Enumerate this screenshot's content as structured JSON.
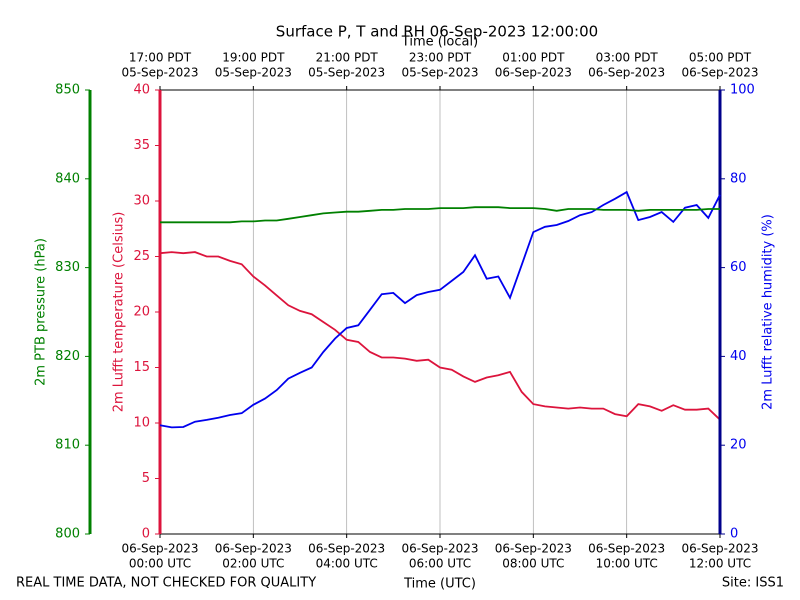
{
  "chart_data": {
    "type": "line",
    "title": "Surface P, T and RH 06-Sep-2023 12:00:00",
    "xlabel": "Time (UTC)",
    "top_xlabel": "Time (local)",
    "footnote_left": "REAL TIME DATA, NOT CHECKED FOR QUALITY",
    "footnote_right": "Site: ISS1",
    "x": [
      0,
      0.25,
      0.5,
      0.75,
      1,
      1.25,
      1.5,
      1.75,
      2,
      2.25,
      2.5,
      2.75,
      3,
      3.25,
      3.5,
      3.75,
      4,
      4.25,
      4.5,
      4.75,
      5,
      5.25,
      5.5,
      5.75,
      6,
      6.25,
      6.5,
      6.75,
      7,
      7.25,
      7.5,
      7.75,
      8,
      8.25,
      8.5,
      8.75,
      9,
      9.25,
      9.5,
      9.75,
      10,
      10.25,
      10.5,
      10.75,
      11,
      11.25,
      11.5,
      11.75,
      12
    ],
    "xlim": [
      0,
      12
    ],
    "xticks": [
      {
        "value": 0,
        "label": [
          "06-Sep-2023",
          "00:00 UTC"
        ]
      },
      {
        "value": 2,
        "label": [
          "06-Sep-2023",
          "02:00 UTC"
        ]
      },
      {
        "value": 4,
        "label": [
          "06-Sep-2023",
          "04:00 UTC"
        ]
      },
      {
        "value": 6,
        "label": [
          "06-Sep-2023",
          "06:00 UTC"
        ]
      },
      {
        "value": 8,
        "label": [
          "06-Sep-2023",
          "08:00 UTC"
        ]
      },
      {
        "value": 10,
        "label": [
          "06-Sep-2023",
          "10:00 UTC"
        ]
      },
      {
        "value": 12,
        "label": [
          "06-Sep-2023",
          "12:00 UTC"
        ]
      }
    ],
    "top_xticks": [
      {
        "value": 0,
        "label": [
          "17:00 PDT",
          "05-Sep-2023"
        ]
      },
      {
        "value": 2,
        "label": [
          "19:00 PDT",
          "05-Sep-2023"
        ]
      },
      {
        "value": 4,
        "label": [
          "21:00 PDT",
          "05-Sep-2023"
        ]
      },
      {
        "value": 6,
        "label": [
          "23:00 PDT",
          "05-Sep-2023"
        ]
      },
      {
        "value": 8,
        "label": [
          "01:00 PDT",
          "06-Sep-2023"
        ]
      },
      {
        "value": 10,
        "label": [
          "03:00 PDT",
          "06-Sep-2023"
        ]
      },
      {
        "value": 12,
        "label": [
          "05:00 PDT",
          "06-Sep-2023"
        ]
      }
    ],
    "grid": true,
    "ylim": [
      0,
      40
    ],
    "yticks": [
      0,
      5,
      10,
      15,
      20,
      25,
      30,
      35,
      40
    ],
    "y2lim": [
      0,
      100
    ],
    "y2ticks": [
      0,
      20,
      40,
      60,
      80,
      100
    ],
    "y3lim": [
      800,
      850
    ],
    "y3ticks": [
      800,
      810,
      820,
      830,
      840,
      850
    ],
    "series": [
      {
        "label": "2m Lufft temperature (Celsius)",
        "color": "#dc143c",
        "axis": "y",
        "values": [
          25.3,
          25.4,
          25.3,
          25.4,
          25.0,
          25.0,
          24.6,
          24.3,
          23.2,
          22.4,
          21.5,
          20.6,
          20.1,
          19.8,
          19.1,
          18.4,
          17.5,
          17.3,
          16.4,
          15.9,
          15.9,
          15.8,
          15.6,
          15.7,
          15.0,
          14.8,
          14.2,
          13.7,
          14.1,
          14.3,
          14.6,
          12.8,
          11.7,
          11.5,
          11.4,
          11.3,
          11.4,
          11.3,
          11.3,
          10.8,
          10.6,
          11.7,
          11.5,
          11.1,
          11.6,
          11.2,
          11.2,
          11.3,
          10.3
        ]
      },
      {
        "label": "2m Lufft relative humidity (%)",
        "color": "#0000ee",
        "axis": "y2",
        "axis_color": "#00008b",
        "values": [
          24.5,
          24.0,
          24.1,
          25.3,
          25.7,
          26.2,
          26.8,
          27.2,
          29.1,
          30.5,
          32.4,
          35.0,
          36.3,
          37.5,
          41.0,
          44.0,
          46.4,
          47.0,
          50.5,
          54.0,
          54.3,
          52.0,
          53.8,
          54.5,
          55.0,
          57.0,
          59.0,
          62.8,
          57.5,
          58.0,
          53.2,
          60.6,
          68.0,
          69.2,
          69.6,
          70.5,
          71.8,
          72.5,
          74.1,
          75.5,
          77.0,
          70.7,
          71.4,
          72.5,
          70.3,
          73.5,
          74.1,
          71.2,
          76.4
        ]
      },
      {
        "label": "2m PTB pressure (hPa)",
        "color": "#008000",
        "axis": "y3",
        "values": [
          835.1,
          835.1,
          835.1,
          835.1,
          835.1,
          835.1,
          835.1,
          835.2,
          835.2,
          835.3,
          835.3,
          835.5,
          835.7,
          835.9,
          836.1,
          836.2,
          836.3,
          836.3,
          836.4,
          836.5,
          836.5,
          836.6,
          836.6,
          836.6,
          836.7,
          836.7,
          836.7,
          836.8,
          836.8,
          836.8,
          836.7,
          836.7,
          836.7,
          836.6,
          836.4,
          836.6,
          836.6,
          836.6,
          836.5,
          836.5,
          836.5,
          836.4,
          836.5,
          836.5,
          836.5,
          836.5,
          836.5,
          836.6,
          836.6
        ]
      }
    ]
  }
}
